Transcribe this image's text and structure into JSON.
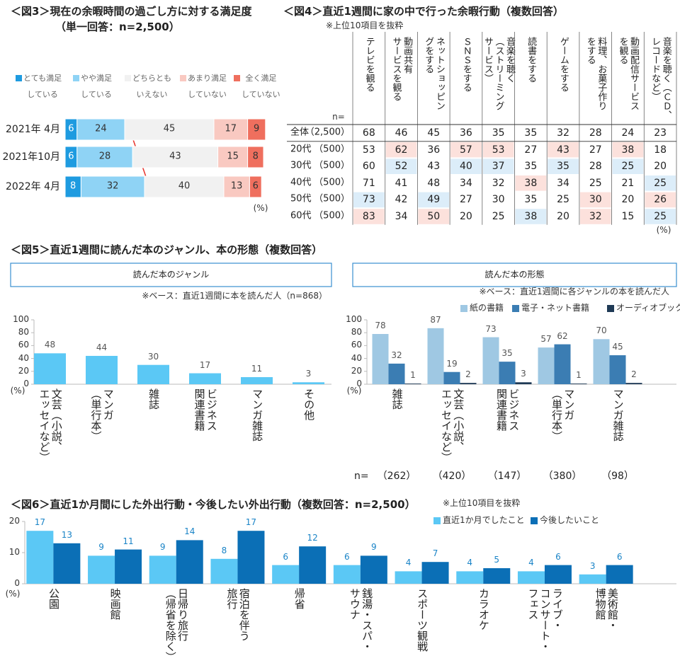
{
  "chart_data": [
    {
      "type": "stacked-bar-h",
      "title": "＜図3＞現在の余暇時間の過ごし方に対する満足度",
      "subtitle": "（単一回答：n=2,500）",
      "categories": [
        "2021年 4月",
        "2021年10月",
        "2022年 4月"
      ],
      "series": [
        {
          "name": "とても満足\nしている",
          "color": "#1e9be0",
          "values": [
            6,
            6,
            8
          ]
        },
        {
          "name": "やや満足\nしている",
          "color": "#8fd3f5",
          "values": [
            24,
            28,
            32
          ]
        },
        {
          "name": "どちらとも\nいえない",
          "color": "#f1f1f1",
          "values": [
            45,
            43,
            40
          ]
        },
        {
          "name": "あまり満足\nしていない",
          "color": "#f9c9c1",
          "values": [
            17,
            15,
            13
          ]
        },
        {
          "name": "全く満足\nしていない",
          "color": "#ef6f5e",
          "values": [
            9,
            8,
            6
          ]
        }
      ],
      "unit_label": "(%)"
    },
    {
      "type": "table",
      "title": "＜図4＞直近1週間に家の中で行った余暇行動（複数回答）",
      "note": "※上位10項目を抜粋",
      "n_header": "n=",
      "columns": [
        "テレビを観る",
        "動画共有\nサービスを観る",
        "ネットショッピン\nグをする",
        "ＳＮＳをする",
        "音楽を聴く\n（ストリーミング\nサービス）",
        "読書をする",
        "ゲームをする",
        "料理、お菓子作り\nをする",
        "動画配信サービス\nを観る",
        "音楽を聴く（ＣＤ、\nレコードなど）"
      ],
      "rows": [
        {
          "label": "全体",
          "n": "（2,500）",
          "values": [
            68,
            46,
            45,
            36,
            35,
            35,
            32,
            28,
            24,
            23
          ],
          "highlight": [
            null,
            null,
            null,
            null,
            null,
            null,
            null,
            null,
            null,
            null
          ]
        },
        {
          "label": "20代",
          "n": "（500）",
          "values": [
            53,
            62,
            36,
            57,
            53,
            27,
            43,
            27,
            38,
            18
          ],
          "highlight": [
            null,
            "high",
            null,
            "high",
            "high",
            null,
            "high",
            null,
            "high",
            null
          ]
        },
        {
          "label": "30代",
          "n": "（500）",
          "values": [
            60,
            52,
            43,
            40,
            37,
            35,
            35,
            28,
            25,
            20
          ],
          "highlight": [
            null,
            "low",
            null,
            "low",
            "low",
            null,
            "low",
            null,
            "low",
            null
          ]
        },
        {
          "label": "40代",
          "n": "（500）",
          "values": [
            71,
            41,
            48,
            34,
            32,
            38,
            34,
            25,
            21,
            25
          ],
          "highlight": [
            null,
            null,
            null,
            null,
            null,
            "high",
            null,
            null,
            null,
            "low"
          ]
        },
        {
          "label": "50代",
          "n": "（500）",
          "values": [
            73,
            42,
            49,
            27,
            30,
            35,
            25,
            30,
            20,
            26
          ],
          "highlight": [
            "low",
            null,
            "low",
            null,
            null,
            null,
            null,
            "high",
            null,
            "high"
          ]
        },
        {
          "label": "60代",
          "n": "（500）",
          "values": [
            83,
            34,
            50,
            20,
            25,
            38,
            20,
            32,
            15,
            25
          ],
          "highlight": [
            "high",
            null,
            "high",
            null,
            null,
            "low",
            null,
            "high",
            null,
            "low"
          ]
        }
      ],
      "highlight_colors": {
        "high": "#fce1dc",
        "low": "#dcedf9"
      },
      "unit_label": "(%)"
    },
    {
      "type": "bar",
      "title": "＜図5＞直近1週間に読んだ本のジャンル、本の形態（複数回答）",
      "panel_title": "読んだ本のジャンル",
      "note": "※ベース：直近1週間に本を読んだ人（n=868）",
      "categories": [
        "文芸（小説、\nエッセイなど）",
        "マンガ\n（単行本）",
        "雑誌",
        "ビジネス\n関連書籍",
        "マンガ雑誌",
        "その他"
      ],
      "values": [
        48,
        44,
        30,
        17,
        11,
        3
      ],
      "color": "#5bc8f5",
      "ylim": [
        0,
        100
      ],
      "yticks": [
        0,
        20,
        40,
        60,
        80,
        100
      ],
      "unit_label": "(%)"
    },
    {
      "type": "grouped-bar",
      "panel_title": "読んだ本の形態",
      "note": "※ベース：直近1週間に各ジャンルの本を読んだ人",
      "categories": [
        "雑誌",
        "文芸（小説、\nエッセイなど）",
        "ビジネス\n関連書籍",
        "マンガ\n（単行本）",
        "マンガ雑誌"
      ],
      "series": [
        {
          "name": "紙の書籍",
          "color": "#9fc8e3",
          "values": [
            78,
            87,
            73,
            57,
            70
          ]
        },
        {
          "name": "電子・ネット書籍",
          "color": "#3b7db3",
          "values": [
            32,
            19,
            35,
            62,
            45
          ]
        },
        {
          "name": "オーディオブック",
          "color": "#1f3a56",
          "values": [
            1,
            2,
            3,
            1,
            2
          ]
        }
      ],
      "ylim": [
        0,
        100
      ],
      "yticks": [
        0,
        20,
        40,
        60,
        80,
        100
      ],
      "unit_label": "(%)",
      "n_label": "n=",
      "n_values": [
        "（262）",
        "（420）",
        "（147）",
        "（380）",
        "（98）"
      ]
    },
    {
      "type": "grouped-bar",
      "title": "＜図6＞直近1か月間にした外出行動・今後したい外出行動（複数回答：n=2,500）",
      "note": "※上位10項目を抜粋",
      "categories": [
        "公園",
        "映画館",
        "日帰り旅行\n（帰省を除く）",
        "宿泊を伴う\n旅行",
        "帰省",
        "銭湯・スパ・\nサウナ",
        "スポーツ観戦",
        "カラオケ",
        "ライブ・\nコンサート・\nフェス",
        "美術館・\n博物館"
      ],
      "series": [
        {
          "name": "直近1か月でしたこと",
          "color": "#5bc8f5",
          "values": [
            17,
            9,
            9,
            8,
            6,
            6,
            4,
            4,
            4,
            3
          ]
        },
        {
          "name": "今後したいこと",
          "color": "#0b6fb6",
          "values": [
            13,
            11,
            14,
            17,
            12,
            9,
            7,
            5,
            6,
            6
          ]
        }
      ],
      "ylim": [
        0,
        20
      ],
      "yticks": [
        0,
        10,
        20
      ],
      "unit_label": "(%)"
    }
  ]
}
